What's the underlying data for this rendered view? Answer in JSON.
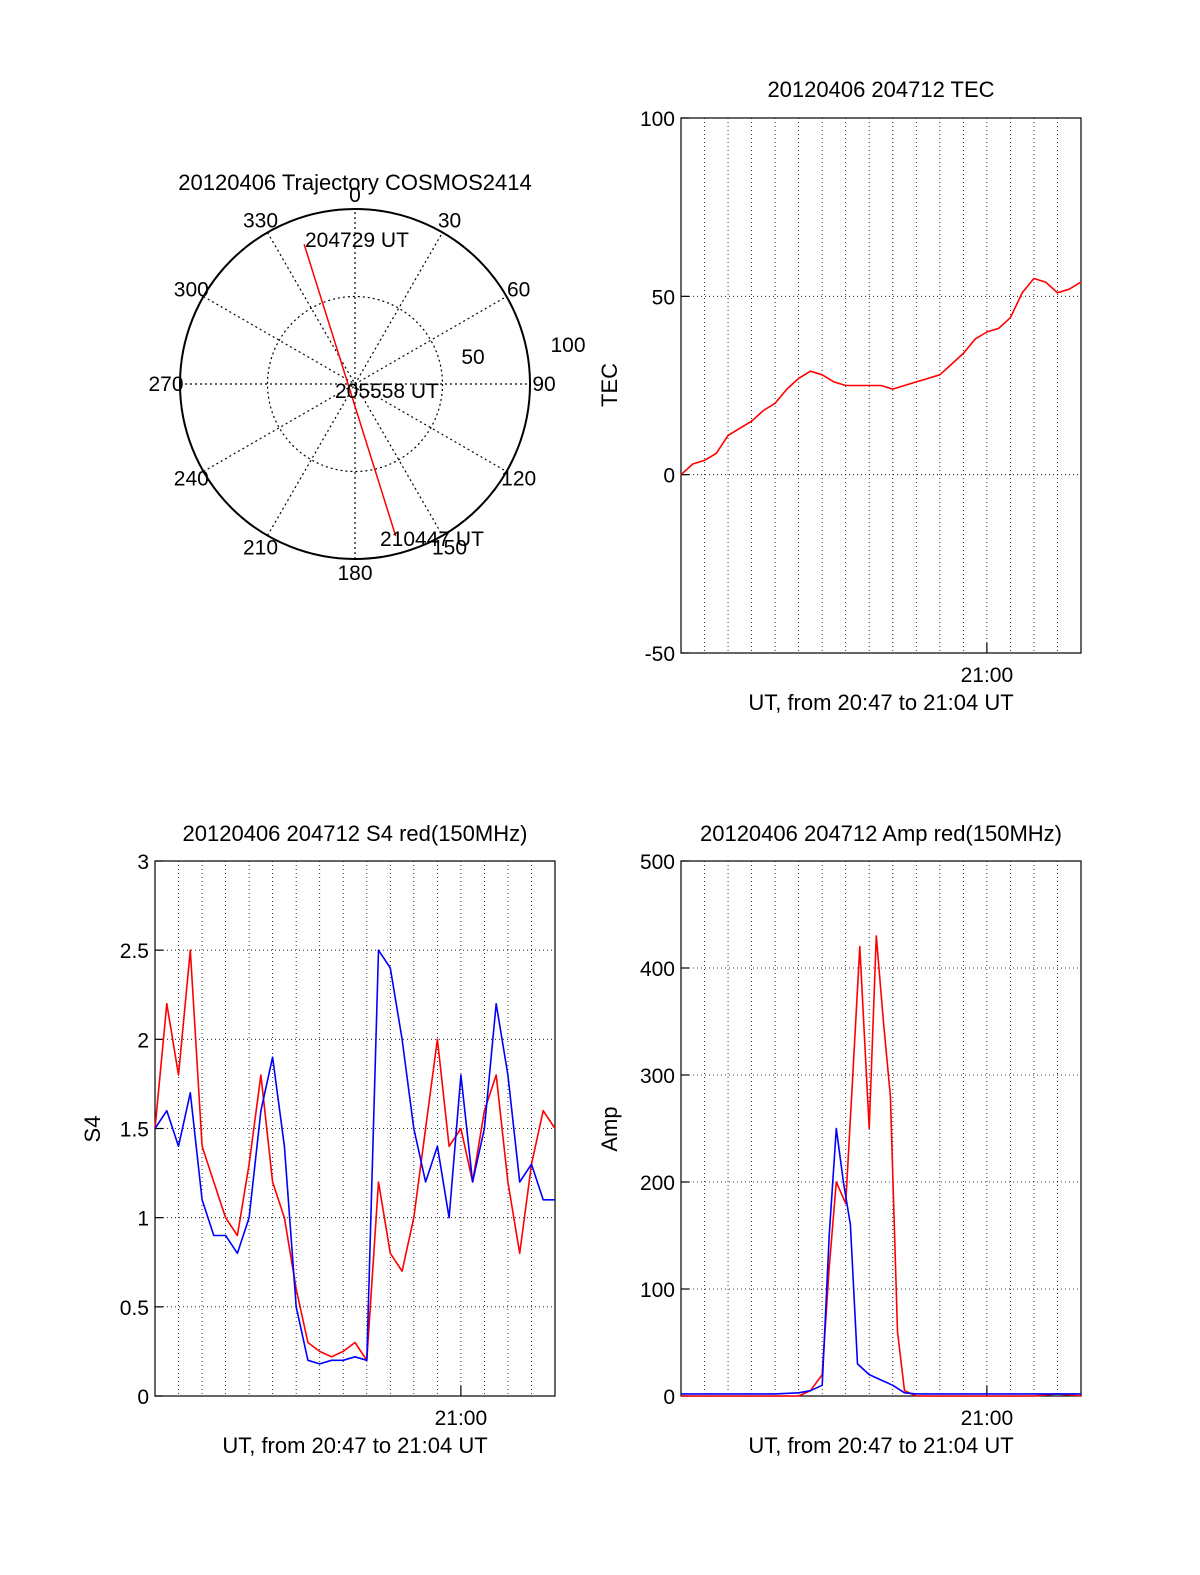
{
  "colors": {
    "red": "#ff0000",
    "blue": "#0000ff",
    "axis": "#000000"
  },
  "chart_data": [
    {
      "id": "polar",
      "type": "scatter",
      "subtype": "polar-trajectory",
      "title": "20120406 Trajectory COSMOS2414",
      "azimuth_labels": [
        "0",
        "30",
        "60",
        "90",
        "120",
        "150",
        "180",
        "210",
        "240",
        "270",
        "300",
        "330"
      ],
      "radius_labels": [
        "50",
        "100"
      ],
      "radius_range": [
        0,
        100
      ],
      "trajectory": {
        "color": "red",
        "points": [
          {
            "az": 340,
            "r": 85
          },
          {
            "az": 165,
            "r": 90
          }
        ]
      },
      "annotations": [
        "204729 UT",
        "205558 UT",
        "210447 UT"
      ]
    },
    {
      "id": "tec",
      "type": "line",
      "title": "20120406 204712 TEC",
      "xlabel": "UT, from 20:47 to 21:04 UT",
      "ylabel": "TEC",
      "xlim": [
        0,
        17
      ],
      "ylim": [
        -50,
        100
      ],
      "yticks": [
        "100",
        "50",
        "0",
        "-50"
      ],
      "xtick_label": "21:00",
      "xtick_value": 13,
      "grid": true,
      "series": [
        {
          "color": "red",
          "x": [
            0,
            0.5,
            1,
            1.5,
            2,
            2.5,
            3,
            3.5,
            4,
            4.5,
            5,
            5.5,
            6,
            6.5,
            7,
            7.5,
            8,
            8.5,
            9,
            9.5,
            10,
            10.5,
            11,
            11.5,
            12,
            12.5,
            13,
            13.5,
            14,
            14.5,
            15,
            15.5,
            16,
            16.5,
            17
          ],
          "y": [
            0,
            3,
            4,
            6,
            11,
            13,
            15,
            18,
            20,
            24,
            27,
            29,
            28,
            26,
            25,
            25,
            25,
            25,
            24,
            25,
            26,
            27,
            28,
            31,
            34,
            38,
            40,
            41,
            44,
            51,
            55,
            54,
            51,
            52,
            54
          ]
        }
      ]
    },
    {
      "id": "s4",
      "type": "line",
      "title": "20120406 204712 S4 red(150MHz)",
      "xlabel": "UT, from 20:47 to 21:04 UT",
      "ylabel": "S4",
      "xlim": [
        0,
        17
      ],
      "ylim": [
        0,
        3
      ],
      "yticks": [
        "3",
        "2.5",
        "2",
        "1.5",
        "1",
        "0.5",
        "0"
      ],
      "xtick_label": "21:00",
      "xtick_value": 13,
      "grid": true,
      "series": [
        {
          "color": "red",
          "x": [
            0,
            0.5,
            1,
            1.5,
            2,
            2.5,
            3,
            3.5,
            4,
            4.5,
            5,
            5.5,
            6,
            6.5,
            7,
            7.5,
            8,
            8.5,
            9,
            9.5,
            10,
            10.5,
            11,
            11.5,
            12,
            12.5,
            13,
            13.5,
            14,
            14.5,
            15,
            15.5,
            16,
            16.5,
            17
          ],
          "y": [
            1.5,
            2.2,
            1.8,
            2.5,
            1.4,
            1.2,
            1.0,
            0.9,
            1.3,
            1.8,
            1.2,
            1.0,
            0.6,
            0.3,
            0.25,
            0.22,
            0.25,
            0.3,
            0.2,
            1.2,
            0.8,
            0.7,
            1.0,
            1.5,
            2.0,
            1.4,
            1.5,
            1.2,
            1.6,
            1.8,
            1.2,
            0.8,
            1.3,
            1.6,
            1.5
          ]
        },
        {
          "color": "blue",
          "x": [
            0,
            0.5,
            1,
            1.5,
            2,
            2.5,
            3,
            3.5,
            4,
            4.5,
            5,
            5.5,
            6,
            6.5,
            7,
            7.5,
            8,
            8.5,
            9,
            9.5,
            10,
            10.5,
            11,
            11.5,
            12,
            12.5,
            13,
            13.5,
            14,
            14.5,
            15,
            15.5,
            16,
            16.5,
            17
          ],
          "y": [
            1.5,
            1.6,
            1.4,
            1.7,
            1.1,
            0.9,
            0.9,
            0.8,
            1.0,
            1.6,
            1.9,
            1.4,
            0.5,
            0.2,
            0.18,
            0.2,
            0.2,
            0.22,
            0.2,
            2.5,
            2.4,
            2.0,
            1.5,
            1.2,
            1.4,
            1.0,
            1.8,
            1.2,
            1.5,
            2.2,
            1.8,
            1.2,
            1.3,
            1.1,
            1.1
          ]
        }
      ]
    },
    {
      "id": "amp",
      "type": "line",
      "title": "20120406 204712 Amp red(150MHz)",
      "xlabel": "UT, from 20:47 to 21:04 UT",
      "ylabel": "Amp",
      "xlim": [
        0,
        17
      ],
      "ylim": [
        0,
        500
      ],
      "yticks": [
        "500",
        "400",
        "300",
        "200",
        "100",
        "0"
      ],
      "xtick_label": "21:00",
      "xtick_value": 13,
      "grid": true,
      "series": [
        {
          "color": "red",
          "x": [
            0,
            1,
            2,
            3,
            4,
            5,
            5.5,
            6,
            6.3,
            6.6,
            7,
            7.3,
            7.6,
            8,
            8.3,
            8.6,
            8.9,
            9.2,
            9.5,
            10,
            11,
            12,
            13,
            14,
            15,
            16,
            17
          ],
          "y": [
            0,
            0,
            0,
            0,
            0,
            0,
            5,
            20,
            120,
            200,
            180,
            300,
            420,
            250,
            430,
            350,
            280,
            60,
            5,
            0,
            0,
            0,
            0,
            0,
            0,
            2,
            0
          ]
        },
        {
          "color": "blue",
          "x": [
            0,
            1,
            2,
            3,
            4,
            5,
            5.5,
            6,
            6.3,
            6.6,
            6.9,
            7.2,
            7.5,
            8,
            8.5,
            9,
            9.5,
            10,
            11,
            12,
            13,
            14,
            15,
            16,
            17
          ],
          "y": [
            2,
            2,
            2,
            2,
            2,
            3,
            5,
            10,
            150,
            250,
            200,
            160,
            30,
            20,
            15,
            10,
            3,
            2,
            2,
            2,
            2,
            2,
            2,
            2,
            2
          ]
        }
      ]
    }
  ]
}
